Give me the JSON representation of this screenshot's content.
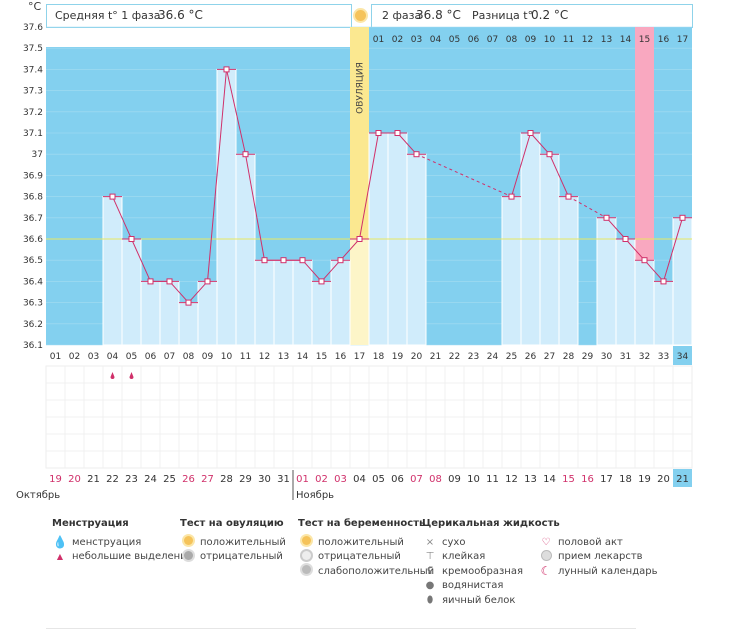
{
  "unit_label": "°C",
  "header": {
    "phase1_label": "Средняя t° 1 фаза",
    "phase1_value": "36.6 °C",
    "phase2_label": "2 фаза",
    "phase2_value": "36.8 °C",
    "diff_label": "Разница t°",
    "diff_value": "0.2 °C"
  },
  "ovulation_label": "ОВУЛЯЦИЯ",
  "month_labels": [
    "Октябрь",
    "Ноябрь"
  ],
  "colors": {
    "sky": "#83d0ef",
    "bar": "#d0ecfb",
    "bar_edge": "#ffffff",
    "ovulation": "#fbe890",
    "ovulation_light": "#fdf5c8",
    "pink_col": "#f9a8c0",
    "line": "#d0306a",
    "avg_line": "#e8e860",
    "red_date": "#d0306a"
  },
  "chart_data": {
    "type": "line",
    "title": "",
    "ylabel": "°C",
    "ylim": [
      36.1,
      37.6
    ],
    "yticks": [
      36.1,
      36.2,
      36.3,
      36.4,
      36.5,
      36.6,
      36.7,
      36.8,
      36.9,
      37,
      37.1,
      37.2,
      37.3,
      37.4,
      37.5,
      37.6
    ],
    "cycle_days": [
      "01",
      "02",
      "03",
      "04",
      "05",
      "06",
      "07",
      "08",
      "09",
      "10",
      "11",
      "12",
      "13",
      "14",
      "15",
      "16",
      "17",
      "18",
      "19",
      "20",
      "21",
      "22",
      "23",
      "24",
      "25",
      "26",
      "27",
      "28",
      "29",
      "30",
      "31",
      "32",
      "33",
      "34"
    ],
    "top_days": [
      "01",
      "02",
      "03",
      "04",
      "05",
      "06",
      "07",
      "08",
      "09",
      "10",
      "11",
      "12",
      "13",
      "14",
      "15",
      "16",
      "17"
    ],
    "calendar_dates": [
      "19",
      "20",
      "21",
      "22",
      "23",
      "24",
      "25",
      "26",
      "27",
      "28",
      "29",
      "30",
      "31",
      "01",
      "02",
      "03",
      "04",
      "05",
      "06",
      "07",
      "08",
      "09",
      "10",
      "11",
      "12",
      "13",
      "14",
      "15",
      "16",
      "17",
      "18",
      "19",
      "20",
      "21"
    ],
    "red_dates": [
      0,
      1,
      7,
      8,
      13,
      14,
      15,
      19,
      20,
      27,
      28
    ],
    "current_day_index": 33,
    "ovulation_day_index": 16,
    "pink_day_index": 31,
    "average_temperature": 36.6,
    "series": [
      {
        "name": "Базальная температура",
        "values": [
          null,
          null,
          null,
          36.8,
          36.6,
          36.4,
          36.4,
          36.3,
          36.4,
          37.4,
          37.0,
          36.5,
          36.5,
          36.5,
          36.4,
          36.5,
          36.6,
          37.1,
          37.1,
          37.0,
          null,
          null,
          null,
          null,
          36.8,
          37.1,
          37.0,
          36.8,
          null,
          36.7,
          36.6,
          36.5,
          36.4,
          36.7
        ]
      }
    ],
    "small_bleeding_days": [
      3,
      4
    ]
  },
  "legend": {
    "menstruation": {
      "title": "Менструация",
      "items": [
        "менструация",
        "небольшие выделения"
      ]
    },
    "ovulation_test": {
      "title": "Тест на овуляцию",
      "items": [
        "положительный",
        "отрицательный"
      ]
    },
    "pregnancy_test": {
      "title": "Тест на беременность",
      "items": [
        "положительный",
        "отрицательный",
        "слабоположительный"
      ]
    },
    "cervical": {
      "title": "Церикальная жидкость",
      "items": [
        "сухо",
        "клейкая",
        "кремообразная",
        "водянистая",
        "яичный белок"
      ]
    },
    "other": {
      "items": [
        "половой акт",
        "прием лекарств",
        "лунный календарь"
      ]
    }
  }
}
